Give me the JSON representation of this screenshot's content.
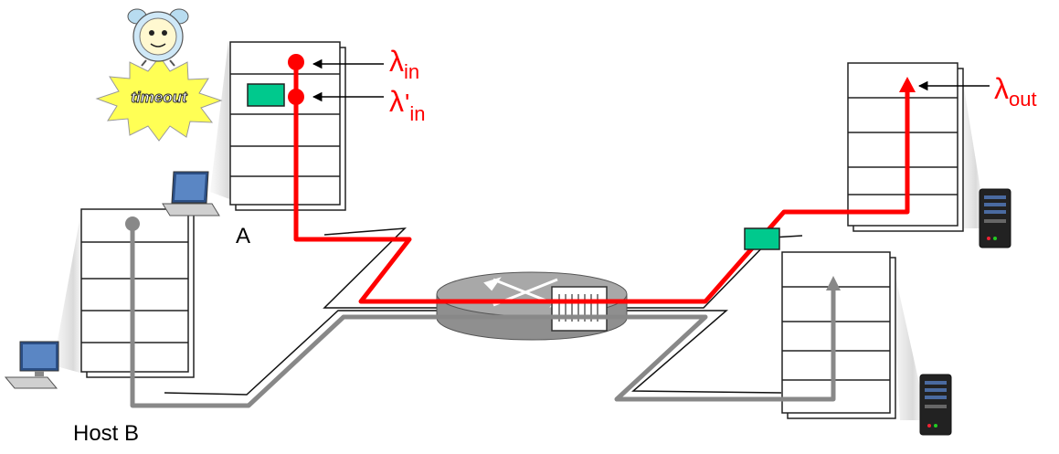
{
  "labels": {
    "host_a": "A",
    "host_b": "Host B",
    "lambda": "λ",
    "in_sub": "in",
    "prime": "'",
    "out_sub": "out",
    "timeout_text": "timeout"
  },
  "colors": {
    "red_path": "#ff0000",
    "gray_path": "#888888",
    "packet": "#00c98d",
    "router_body": "#8f8f8f",
    "router_top": "#a8a8a8"
  },
  "icons": {
    "alarm_clock": "alarm-clock-icon",
    "timeout_burst": "timeout-burst-icon",
    "laptop": "laptop-icon",
    "desktop": "desktop-computer-icon",
    "router": "router-icon",
    "server": "server-icon"
  }
}
